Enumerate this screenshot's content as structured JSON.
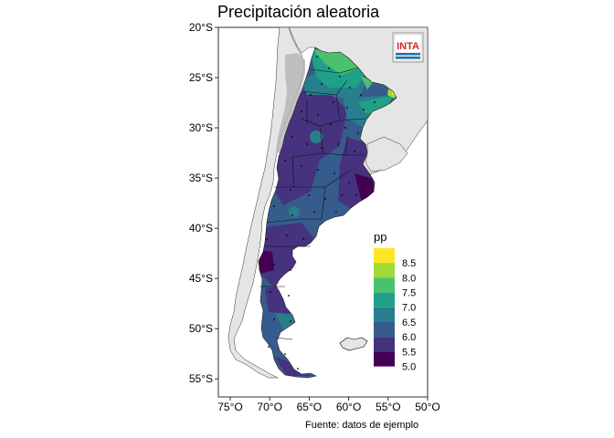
{
  "title": "Precipitación aleatoria",
  "caption": "Fuente: datos de ejemplo",
  "logo": {
    "text": "INTA",
    "color": "#d7261e",
    "stripe_color": "#1e6fb8"
  },
  "axes": {
    "y_ticks": [
      "20°S",
      "25°S",
      "30°S",
      "35°S",
      "40°S",
      "45°S",
      "50°S",
      "55°S"
    ],
    "x_ticks": [
      "75°O",
      "70°O",
      "65°O",
      "60°O",
      "55°O",
      "50°O"
    ],
    "lat_values": [
      -20,
      -25,
      -30,
      -35,
      -40,
      -45,
      -50,
      -55
    ],
    "lon_values": [
      -75,
      -70,
      -65,
      -60,
      -55,
      -50
    ],
    "xlim": [
      -76.5,
      -50
    ],
    "ylim": [
      -56.8,
      -20
    ]
  },
  "legend": {
    "title": "pp",
    "entries": [
      {
        "label": "8.5",
        "color": "#fde725"
      },
      {
        "label": "8.0",
        "color": "#a0da39"
      },
      {
        "label": "7.5",
        "color": "#4ac16d"
      },
      {
        "label": "7.0",
        "color": "#1fa187"
      },
      {
        "label": "6.5",
        "color": "#277f8e"
      },
      {
        "label": "6.0",
        "color": "#365c8d"
      },
      {
        "label": "5.5",
        "color": "#46327e"
      },
      {
        "label": "5.0",
        "color": "#440154"
      }
    ]
  },
  "colors": {
    "background_land": "#e5e5e5",
    "andes_relief": "#b4b4b4",
    "ocean": "#ffffff"
  }
}
